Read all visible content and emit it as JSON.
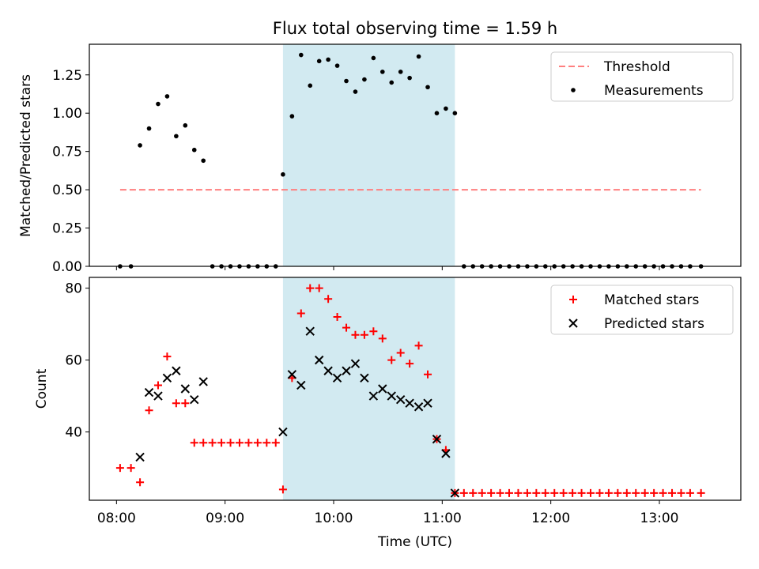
{
  "title": "Flux total observing time = 1.59 h",
  "colors": {
    "highlight": "#add8e6",
    "threshold": "#ff7f7f",
    "measurement": "#000000",
    "matched": "#ff0000",
    "predicted": "#000000"
  },
  "chart_data": [
    {
      "type": "scatter",
      "ylabel": "Matched/Predicted stars",
      "xlabel": "",
      "x_unit": "time of day (UTC)",
      "xlim": [
        "07:45",
        "13:45"
      ],
      "ylim": [
        0,
        1.45
      ],
      "yticks": [
        "0.00",
        "0.25",
        "0.50",
        "0.75",
        "1.00",
        "1.25"
      ],
      "highlight_span": [
        "09:32",
        "11:07"
      ],
      "legend": {
        "placement": "upper right",
        "entries": [
          "Threshold",
          "Measurements"
        ]
      },
      "series": [
        {
          "name": "Threshold",
          "kind": "dashed-line",
          "x": [
            "08:02",
            "13:23"
          ],
          "y": [
            0.5,
            0.5
          ]
        },
        {
          "name": "Measurements",
          "kind": "dots",
          "x": [
            "08:02",
            "08:08",
            "08:13",
            "08:18",
            "08:23",
            "08:28",
            "08:33",
            "08:38",
            "08:43",
            "08:48",
            "08:53",
            "08:58",
            "09:03",
            "09:08",
            "09:13",
            "09:18",
            "09:23",
            "09:28",
            "09:32",
            "09:37",
            "09:42",
            "09:47",
            "09:52",
            "09:57",
            "10:02",
            "10:07",
            "10:12",
            "10:17",
            "10:22",
            "10:27",
            "10:32",
            "10:37",
            "10:42",
            "10:47",
            "10:52",
            "10:57",
            "11:02",
            "11:07",
            "11:12",
            "11:17",
            "11:22",
            "11:27",
            "11:32",
            "11:37",
            "11:42",
            "11:47",
            "11:52",
            "11:57",
            "12:02",
            "12:07",
            "12:12",
            "12:17",
            "12:22",
            "12:27",
            "12:32",
            "12:37",
            "12:42",
            "12:47",
            "12:52",
            "12:57",
            "13:02",
            "13:07",
            "13:12",
            "13:17",
            "13:23"
          ],
          "y": [
            0,
            0,
            0.79,
            0.9,
            1.06,
            1.11,
            0.85,
            0.92,
            0.76,
            0.69,
            0,
            0,
            0,
            0,
            0,
            0,
            0,
            0,
            0.6,
            0.98,
            1.38,
            1.18,
            1.34,
            1.35,
            1.31,
            1.21,
            1.14,
            1.22,
            1.36,
            1.27,
            1.2,
            1.27,
            1.23,
            1.37,
            1.17,
            1.0,
            1.03,
            1.0,
            0,
            0,
            0,
            0,
            0,
            0,
            0,
            0,
            0,
            0,
            0,
            0,
            0,
            0,
            0,
            0,
            0,
            0,
            0,
            0,
            0,
            0,
            0,
            0,
            0,
            0,
            0
          ]
        }
      ]
    },
    {
      "type": "scatter",
      "ylabel": "Count",
      "xlabel": "Time (UTC)",
      "xlim": [
        "07:45",
        "13:45"
      ],
      "ylim": [
        21,
        83
      ],
      "yticks": [
        "40",
        "60",
        "80"
      ],
      "xticks": [
        "08:00",
        "09:00",
        "10:00",
        "11:00",
        "12:00",
        "13:00"
      ],
      "highlight_span": [
        "09:32",
        "11:07"
      ],
      "legend": {
        "placement": "upper right",
        "entries": [
          "Matched stars",
          "Predicted stars"
        ]
      },
      "series": [
        {
          "name": "Matched stars",
          "marker": "plus",
          "x": [
            "08:02",
            "08:08",
            "08:13",
            "08:18",
            "08:23",
            "08:28",
            "08:33",
            "08:38",
            "08:43",
            "08:48",
            "08:53",
            "08:58",
            "09:03",
            "09:08",
            "09:13",
            "09:18",
            "09:23",
            "09:28",
            "09:32",
            "09:37",
            "09:42",
            "09:47",
            "09:52",
            "09:57",
            "10:02",
            "10:07",
            "10:12",
            "10:17",
            "10:22",
            "10:27",
            "10:32",
            "10:37",
            "10:42",
            "10:47",
            "10:52",
            "10:57",
            "11:02",
            "11:07",
            "11:12",
            "11:17",
            "11:22",
            "11:27",
            "11:32",
            "11:37",
            "11:42",
            "11:47",
            "11:52",
            "11:57",
            "12:02",
            "12:07",
            "12:12",
            "12:17",
            "12:22",
            "12:27",
            "12:32",
            "12:37",
            "12:42",
            "12:47",
            "12:52",
            "12:57",
            "13:02",
            "13:07",
            "13:12",
            "13:17",
            "13:23"
          ],
          "y": [
            30,
            30,
            26,
            46,
            53,
            61,
            48,
            48,
            37,
            37,
            37,
            37,
            37,
            37,
            37,
            37,
            37,
            37,
            24,
            55,
            73,
            80,
            80,
            77,
            72,
            69,
            67,
            67,
            68,
            66,
            60,
            62,
            59,
            64,
            56,
            38,
            35,
            23,
            23,
            23,
            23,
            23,
            23,
            23,
            23,
            23,
            23,
            23,
            23,
            23,
            23,
            23,
            23,
            23,
            23,
            23,
            23,
            23,
            23,
            23,
            23,
            23,
            23,
            23,
            23
          ]
        },
        {
          "name": "Predicted stars",
          "marker": "x",
          "x": [
            "08:13",
            "08:18",
            "08:23",
            "08:28",
            "08:33",
            "08:38",
            "08:43",
            "08:48",
            "09:32",
            "09:37",
            "09:42",
            "09:47",
            "09:52",
            "09:57",
            "10:02",
            "10:07",
            "10:12",
            "10:17",
            "10:22",
            "10:27",
            "10:32",
            "10:37",
            "10:42",
            "10:47",
            "10:52",
            "10:57",
            "11:02",
            "11:07"
          ],
          "y": [
            33,
            51,
            50,
            55,
            57,
            52,
            49,
            54,
            40,
            56,
            53,
            68,
            60,
            57,
            55,
            57,
            59,
            55,
            50,
            52,
            50,
            49,
            48,
            47,
            48,
            38,
            34,
            23
          ]
        }
      ]
    }
  ]
}
